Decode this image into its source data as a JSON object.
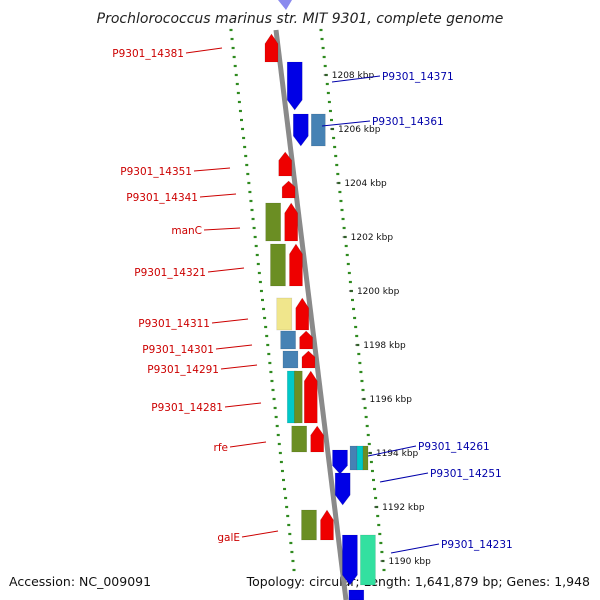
{
  "title": "Prochlorococcus marinus str. MIT 9301, complete genome",
  "footer": {
    "accession": "Accession: NC_009091",
    "topology": "Topology: circular; Length: 1,641,879 bp; Genes: 1,948"
  },
  "colors": {
    "backbone": "#8a8a8a",
    "dots": "#2f8a1f",
    "forward": "#ee0000",
    "reverse": "#0000e6",
    "label_forward": "#cc0000",
    "label_reverse": "#0000aa",
    "olive": "#6b8e23",
    "steel": "#4682b4",
    "khaki": "#f0e68c",
    "cyan": "#00c8c8",
    "mint": "#33e0a0"
  },
  "ticks": [
    {
      "label": "1208 kbp"
    },
    {
      "label": "1206 kbp"
    },
    {
      "label": "1204 kbp"
    },
    {
      "label": "1202 kbp"
    },
    {
      "label": "1200 kbp"
    },
    {
      "label": "1198 kbp"
    },
    {
      "label": "1196 kbp"
    },
    {
      "label": "1194 kbp"
    },
    {
      "label": "1192 kbp"
    },
    {
      "label": "1190 kbp"
    }
  ],
  "left_labels": [
    {
      "text": "P9301_14381"
    },
    {
      "text": "P9301_14351"
    },
    {
      "text": "P9301_14341"
    },
    {
      "text": "manC"
    },
    {
      "text": "P9301_14321"
    },
    {
      "text": "P9301_14311"
    },
    {
      "text": "P9301_14301"
    },
    {
      "text": "P9301_14291"
    },
    {
      "text": "P9301_14281"
    },
    {
      "text": "rfe"
    },
    {
      "text": "galE"
    }
  ],
  "right_labels": [
    {
      "text": "P9301_14371"
    },
    {
      "text": "P9301_14361"
    },
    {
      "text": "P9301_14261"
    },
    {
      "text": "P9301_14251"
    },
    {
      "text": "P9301_14231"
    }
  ]
}
